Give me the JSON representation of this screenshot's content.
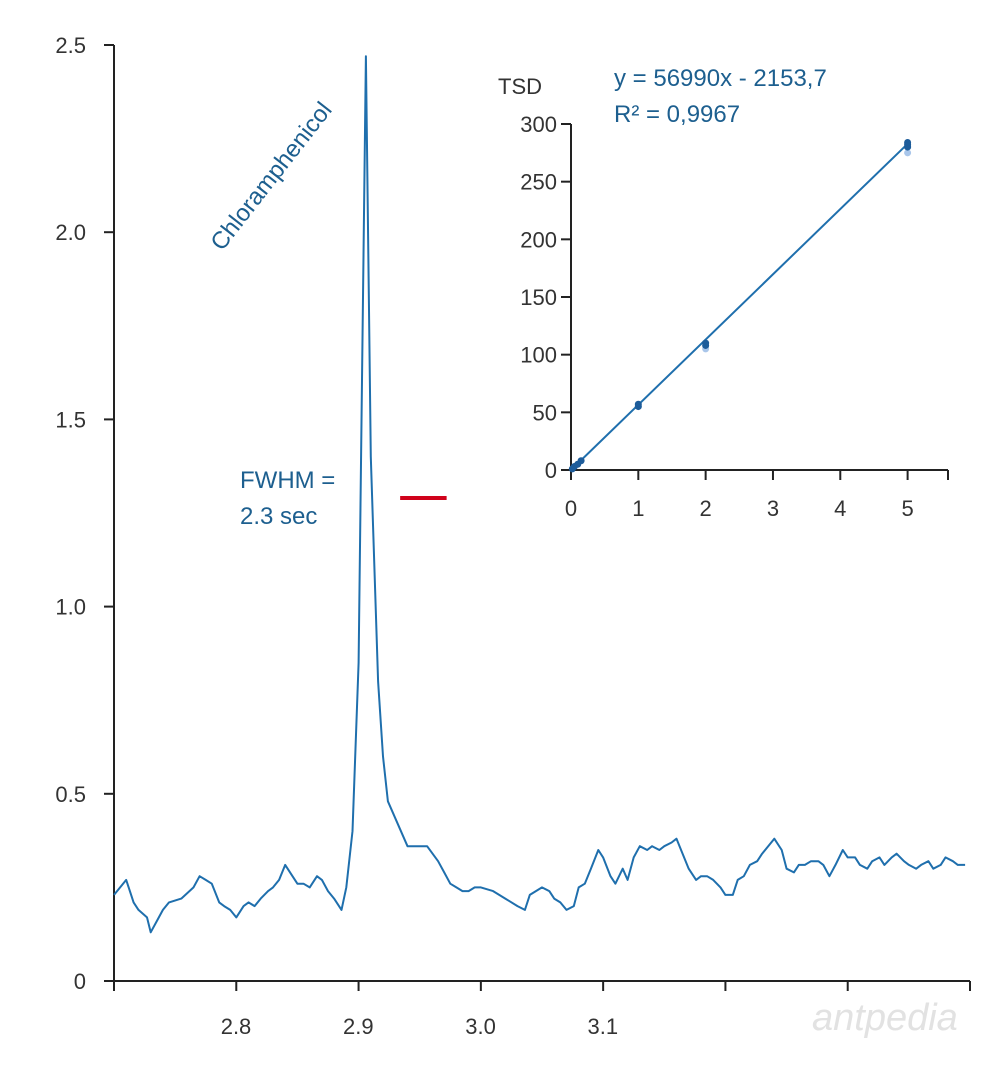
{
  "chart_data": [
    {
      "type": "line",
      "title": "",
      "xlabel": "",
      "ylabel": "",
      "xlim": [
        2.7,
        3.4
      ],
      "ylim": [
        0,
        2.5
      ],
      "yticks": [
        "0",
        "0.5",
        "1.0",
        "1.5",
        "2.0",
        "2.5"
      ],
      "xticks": [
        "2.8",
        "2.9",
        "3.0",
        "3.1",
        "",
        "",
        ""
      ],
      "grid": false,
      "series": [
        {
          "x": [
            2.7,
            2.71,
            2.716,
            2.72,
            2.727,
            2.73,
            2.735,
            2.74,
            2.745,
            2.755,
            2.765,
            2.77,
            2.775,
            2.78,
            2.786,
            2.79,
            2.795,
            2.8,
            2.806,
            2.81,
            2.815,
            2.82,
            2.826,
            2.83,
            2.835,
            2.84,
            2.846,
            2.85,
            2.855,
            2.86,
            2.866,
            2.87,
            2.875,
            2.88,
            2.886,
            2.89,
            2.895,
            2.9,
            2.906,
            2.91,
            2.916,
            2.92,
            2.924,
            2.94,
            2.956,
            2.965,
            2.97,
            2.975,
            2.98,
            2.985,
            2.99,
            2.995,
            3.0,
            3.01,
            3.02,
            3.03,
            3.036,
            3.04,
            3.045,
            3.05,
            3.056,
            3.06,
            3.065,
            3.07,
            3.076,
            3.08,
            3.085,
            3.09,
            3.096,
            3.1,
            3.106,
            3.11,
            3.116,
            3.12,
            3.125,
            3.13,
            3.136,
            3.14,
            3.146,
            3.15,
            3.156,
            3.16,
            3.165,
            3.17,
            3.176,
            3.18,
            3.185,
            3.19,
            3.196,
            3.2,
            3.206,
            3.21,
            3.215,
            3.22,
            3.226,
            3.23,
            3.235,
            3.24,
            3.246,
            3.25,
            3.256,
            3.26,
            3.265,
            3.27,
            3.276,
            3.28,
            3.285,
            3.29,
            3.296,
            3.3,
            3.306,
            3.31,
            3.316,
            3.32,
            3.326,
            3.33,
            3.336,
            3.34,
            3.346,
            3.35,
            3.356,
            3.36,
            3.366,
            3.37,
            3.376,
            3.38,
            3.386,
            3.39,
            3.396
          ],
          "y": [
            0.23,
            0.27,
            0.21,
            0.19,
            0.17,
            0.13,
            0.16,
            0.19,
            0.21,
            0.22,
            0.25,
            0.28,
            0.27,
            0.26,
            0.21,
            0.2,
            0.19,
            0.17,
            0.2,
            0.21,
            0.2,
            0.22,
            0.24,
            0.25,
            0.27,
            0.31,
            0.28,
            0.26,
            0.26,
            0.25,
            0.28,
            0.27,
            0.24,
            0.22,
            0.19,
            0.25,
            0.4,
            0.85,
            2.47,
            1.4,
            0.8,
            0.6,
            0.48,
            0.36,
            0.36,
            0.32,
            0.29,
            0.26,
            0.25,
            0.24,
            0.24,
            0.25,
            0.25,
            0.24,
            0.22,
            0.2,
            0.19,
            0.23,
            0.24,
            0.25,
            0.24,
            0.22,
            0.21,
            0.19,
            0.2,
            0.25,
            0.26,
            0.3,
            0.35,
            0.33,
            0.28,
            0.26,
            0.3,
            0.27,
            0.33,
            0.36,
            0.35,
            0.36,
            0.35,
            0.36,
            0.37,
            0.38,
            0.34,
            0.3,
            0.27,
            0.28,
            0.28,
            0.27,
            0.25,
            0.23,
            0.23,
            0.27,
            0.28,
            0.31,
            0.32,
            0.34,
            0.36,
            0.38,
            0.35,
            0.3,
            0.29,
            0.31,
            0.31,
            0.32,
            0.32,
            0.31,
            0.28,
            0.31,
            0.35,
            0.33,
            0.33,
            0.31,
            0.3,
            0.32,
            0.33,
            0.31,
            0.33,
            0.34,
            0.32,
            0.31,
            0.3,
            0.31,
            0.32,
            0.3,
            0.31,
            0.33,
            0.32,
            0.31,
            0.31
          ]
        }
      ],
      "annotations": {
        "compound_label": "Chloramphenicol",
        "fwhm_line1": "FWHM =",
        "fwhm_line2": "2.3 sec",
        "fwhm_x_range": [
          2.934,
          2.972
        ],
        "fwhm_y": 1.29
      }
    },
    {
      "type": "scatter",
      "title": "",
      "xlabel": "",
      "ylabel": "TSD",
      "xlim": [
        0,
        5.6
      ],
      "ylim": [
        0,
        300
      ],
      "xticks": [
        "0",
        "1",
        "2",
        "3",
        "4",
        "5"
      ],
      "yticks": [
        "0",
        "50",
        "100",
        "150",
        "200",
        "250",
        "300"
      ],
      "grid": false,
      "points": {
        "x": [
          0.02,
          0.05,
          0.1,
          0.15,
          1.0,
          1.0,
          2.0,
          2.0,
          2.0,
          5.0,
          5.0,
          5.0,
          5.0
        ],
        "y": [
          1,
          3,
          5,
          8,
          55,
          57,
          105,
          108,
          110,
          275,
          280,
          282,
          284
        ]
      },
      "fit_line": {
        "equation": "y = 56990x - 2153,7",
        "r2": "R² = 0,9967",
        "x": [
          0,
          5.0
        ],
        "y": [
          -2.2,
          282.8
        ]
      }
    }
  ],
  "watermark": "antpedia"
}
